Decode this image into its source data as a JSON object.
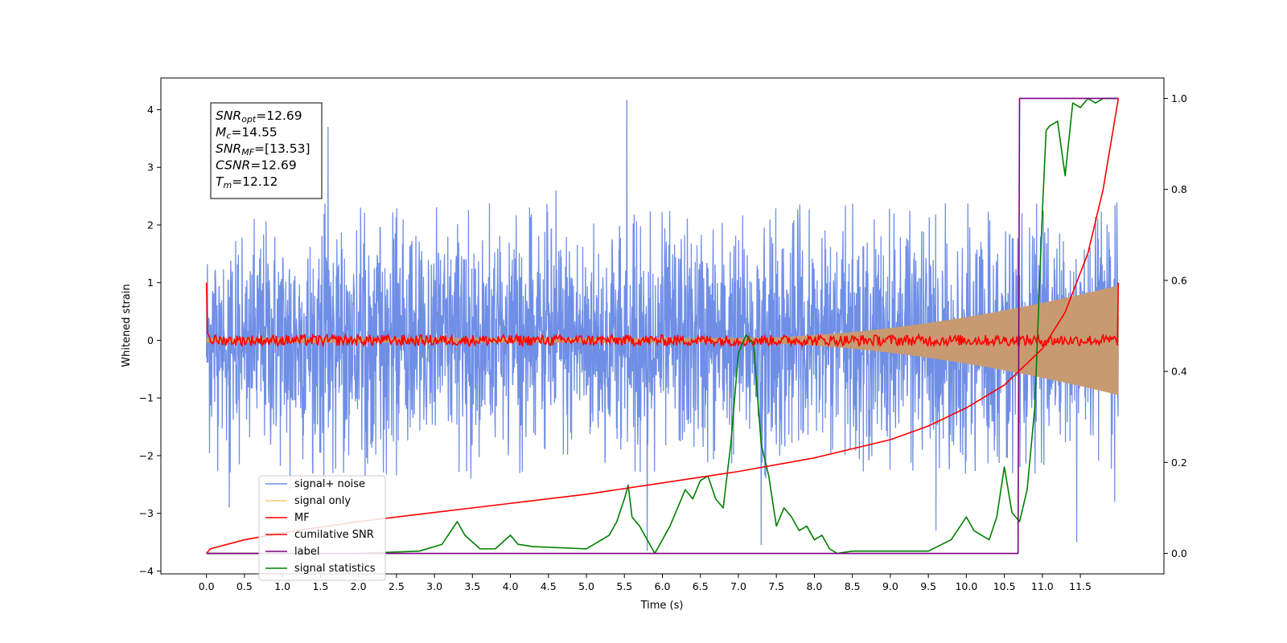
{
  "chart_data": {
    "type": "line",
    "xlabel": "Time (s)",
    "ylabel": "Whitened strain",
    "xlim": [
      -0.6,
      12.6
    ],
    "ylim_left": [
      -4.05,
      4.55
    ],
    "ylim_right": [
      -0.045,
      1.045
    ],
    "xticks": [
      "0.0",
      "0.5",
      "1.0",
      "1.5",
      "2.0",
      "2.5",
      "3.0",
      "3.5",
      "4.0",
      "4.5",
      "5.0",
      "5.5",
      "6.0",
      "6.5",
      "7.0",
      "7.5",
      "8.0",
      "8.5",
      "9.0",
      "9.5",
      "10.0",
      "10.5",
      "11.0",
      "11.5"
    ],
    "xtick_values": [
      0.0,
      0.5,
      1.0,
      1.5,
      2.0,
      2.5,
      3.0,
      3.5,
      4.0,
      4.5,
      5.0,
      5.5,
      6.0,
      6.5,
      7.0,
      7.5,
      8.0,
      8.5,
      9.0,
      9.5,
      10.0,
      10.5,
      11.0,
      11.5
    ],
    "yticks_left": [
      "−4",
      "−3",
      "−2",
      "−1",
      "0",
      "1",
      "2",
      "3",
      "4"
    ],
    "ytick_left_values": [
      -4,
      -3,
      -2,
      -1,
      0,
      1,
      2,
      3,
      4
    ],
    "yticks_right": [
      "0.0",
      "0.2",
      "0.4",
      "0.6",
      "0.8",
      "1.0"
    ],
    "ytick_right_values": [
      0.0,
      0.2,
      0.4,
      0.6,
      0.8,
      1.0
    ],
    "legend_position": "lower-left",
    "grid": false,
    "series": [
      {
        "name": "signal+ noise",
        "color": "#6f8ee6",
        "axis": "left",
        "x_range": [
          0.0,
          12.0
        ],
        "noise_std": 0.95,
        "envelope_max": 2.4,
        "spikes": [
          [
            0.3,
            -2.9
          ],
          [
            1.1,
            -2.6
          ],
          [
            5.53,
            4.17
          ],
          [
            5.8,
            -3.65
          ],
          [
            7.3,
            -3.55
          ],
          [
            9.6,
            -3.3
          ],
          [
            11.45,
            -3.5
          ],
          [
            11.95,
            -2.8
          ],
          [
            4.6,
            2.6
          ],
          [
            1.6,
            3.7
          ]
        ]
      },
      {
        "name": "signal only",
        "color": "#c89a72",
        "axis": "left",
        "x_range": [
          0.0,
          12.0
        ],
        "amplitude_start": 0.04,
        "amplitude_end": 0.95,
        "grow_from": 7.0
      },
      {
        "name": "MF",
        "color": "#ff0000",
        "axis": "left",
        "x_range": [
          0.0,
          12.0
        ],
        "level": 0.0,
        "jitter": 0.06,
        "endpoints": [
          1.0,
          1.0
        ]
      },
      {
        "name": "cumilative SNR",
        "color": "#ff0000",
        "axis": "right",
        "x": [
          0.0,
          0.05,
          0.5,
          1.0,
          2.0,
          3.0,
          4.0,
          5.0,
          6.0,
          7.0,
          8.0,
          9.0,
          9.5,
          10.0,
          10.5,
          11.0,
          11.3,
          11.6,
          11.8,
          12.0
        ],
        "y": [
          0.0,
          0.01,
          0.03,
          0.045,
          0.07,
          0.09,
          0.11,
          0.13,
          0.155,
          0.18,
          0.21,
          0.25,
          0.28,
          0.32,
          0.37,
          0.45,
          0.53,
          0.66,
          0.8,
          1.0
        ]
      },
      {
        "name": "label",
        "color": "#800080",
        "axis": "right",
        "x": [
          0.0,
          10.68,
          10.7,
          12.0
        ],
        "y": [
          0.0,
          0.0,
          1.0,
          1.0
        ]
      },
      {
        "name": "signal statistics",
        "color": "#008000",
        "axis": "right",
        "x": [
          0.0,
          2.0,
          2.8,
          3.1,
          3.3,
          3.4,
          3.6,
          3.8,
          4.0,
          4.1,
          4.3,
          5.0,
          5.3,
          5.4,
          5.5,
          5.55,
          5.6,
          5.7,
          5.9,
          6.1,
          6.2,
          6.3,
          6.4,
          6.5,
          6.6,
          6.7,
          6.8,
          6.9,
          7.0,
          7.1,
          7.2,
          7.3,
          7.4,
          7.5,
          7.6,
          7.7,
          7.8,
          7.9,
          8.0,
          8.1,
          8.2,
          8.3,
          8.5,
          9.0,
          9.5,
          9.8,
          10.0,
          10.1,
          10.2,
          10.3,
          10.4,
          10.5,
          10.6,
          10.7,
          10.8,
          10.9,
          11.0,
          11.05,
          11.1,
          11.2,
          11.3,
          11.4,
          11.5,
          11.6,
          11.7,
          11.8,
          11.9,
          12.0
        ],
        "y": [
          0.0,
          0.0,
          0.005,
          0.02,
          0.07,
          0.04,
          0.01,
          0.01,
          0.04,
          0.02,
          0.015,
          0.01,
          0.04,
          0.07,
          0.12,
          0.15,
          0.08,
          0.06,
          0.0,
          0.06,
          0.1,
          0.14,
          0.12,
          0.16,
          0.17,
          0.12,
          0.1,
          0.24,
          0.44,
          0.48,
          0.46,
          0.24,
          0.17,
          0.06,
          0.1,
          0.08,
          0.05,
          0.06,
          0.03,
          0.04,
          0.01,
          0.0,
          0.005,
          0.005,
          0.005,
          0.03,
          0.08,
          0.05,
          0.04,
          0.03,
          0.08,
          0.19,
          0.09,
          0.07,
          0.14,
          0.32,
          0.75,
          0.93,
          0.94,
          0.95,
          0.83,
          0.99,
          0.98,
          1.0,
          0.99,
          1.0,
          1.0,
          1.0
        ]
      }
    ],
    "annotation": [
      {
        "main": "SNR",
        "sub": "opt",
        "value": "=12.69"
      },
      {
        "main": "M",
        "sub": "c",
        "value": "=14.55"
      },
      {
        "main": "SNR",
        "sub": "MF",
        "value": "=[13.53]"
      },
      {
        "main": "CSNR",
        "sub": "",
        "value": "=12.69"
      },
      {
        "main": "T",
        "sub": "m",
        "value": "=12.12"
      }
    ]
  }
}
